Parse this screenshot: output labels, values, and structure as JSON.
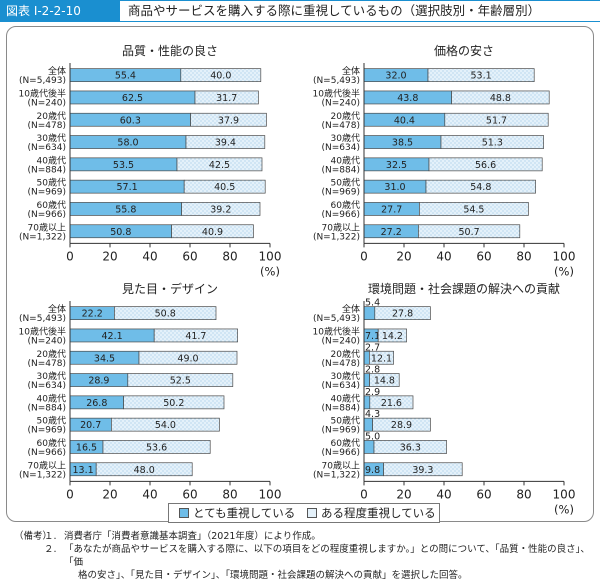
{
  "header": {
    "figure_label": "図表 I-2-2-10",
    "title": "商品やサービスを購入する際に重視しているもの（選択肢別・年齢層別）"
  },
  "colors": {
    "series1_fill": "#6fbde8",
    "series2_fill": "#e4f1fa",
    "border": "#1a8fd0"
  },
  "legend": {
    "items": [
      {
        "label": "とても重視している",
        "color": "#6fbde8"
      },
      {
        "label": "ある程度重視している",
        "color": "#e4f1fa"
      }
    ]
  },
  "chart_data": [
    {
      "type": "bar",
      "orientation": "horizontal",
      "stacked": true,
      "title": "品質・性能の良さ",
      "categories": [
        [
          "全体",
          "(N=5,493)"
        ],
        [
          "10歳代後半",
          "(N=240)"
        ],
        [
          "20歳代",
          "(N=478)"
        ],
        [
          "30歳代",
          "(N=634)"
        ],
        [
          "40歳代",
          "(N=884)"
        ],
        [
          "50歳代",
          "(N=969)"
        ],
        [
          "60歳代",
          "(N=966)"
        ],
        [
          "70歳以上",
          "(N=1,322)"
        ]
      ],
      "series": [
        {
          "name": "とても重視している",
          "values": [
            "55.4",
            "62.5",
            "60.3",
            "58.0",
            "53.5",
            "57.1",
            "55.8",
            "50.8"
          ]
        },
        {
          "name": "ある程度重視している",
          "values": [
            "40.0",
            "31.7",
            "37.9",
            "39.4",
            "42.5",
            "40.5",
            "39.2",
            "40.9"
          ]
        }
      ],
      "xlim": [
        0,
        100
      ],
      "xticks": [
        "0",
        "20",
        "40",
        "60",
        "80",
        "100"
      ],
      "xunit": "(%)"
    },
    {
      "type": "bar",
      "orientation": "horizontal",
      "stacked": true,
      "title": "価格の安さ",
      "categories": [
        [
          "全体",
          "(N=5,493)"
        ],
        [
          "10歳代後半",
          "(N=240)"
        ],
        [
          "20歳代",
          "(N=478)"
        ],
        [
          "30歳代",
          "(N=634)"
        ],
        [
          "40歳代",
          "(N=884)"
        ],
        [
          "50歳代",
          "(N=969)"
        ],
        [
          "60歳代",
          "(N=966)"
        ],
        [
          "70歳以上",
          "(N=1,322)"
        ]
      ],
      "series": [
        {
          "name": "とても重視している",
          "values": [
            "32.0",
            "43.8",
            "40.4",
            "38.5",
            "32.5",
            "31.0",
            "27.7",
            "27.2"
          ]
        },
        {
          "name": "ある程度重視している",
          "values": [
            "53.1",
            "48.8",
            "51.7",
            "51.3",
            "56.6",
            "54.8",
            "54.5",
            "50.7"
          ]
        }
      ],
      "xlim": [
        0,
        100
      ],
      "xticks": [
        "0",
        "20",
        "40",
        "60",
        "80",
        "100"
      ],
      "xunit": "(%)"
    },
    {
      "type": "bar",
      "orientation": "horizontal",
      "stacked": true,
      "title": "見た目・デザイン",
      "categories": [
        [
          "全体",
          "(N=5,493)"
        ],
        [
          "10歳代後半",
          "(N=240)"
        ],
        [
          "20歳代",
          "(N=478)"
        ],
        [
          "30歳代",
          "(N=634)"
        ],
        [
          "40歳代",
          "(N=884)"
        ],
        [
          "50歳代",
          "(N=969)"
        ],
        [
          "60歳代",
          "(N=966)"
        ],
        [
          "70歳以上",
          "(N=1,322)"
        ]
      ],
      "series": [
        {
          "name": "とても重視している",
          "values": [
            "22.2",
            "42.1",
            "34.5",
            "28.9",
            "26.8",
            "20.7",
            "16.5",
            "13.1"
          ]
        },
        {
          "name": "ある程度重視している",
          "values": [
            "50.8",
            "41.7",
            "49.0",
            "52.5",
            "50.2",
            "54.0",
            "53.6",
            "48.0"
          ]
        }
      ],
      "xlim": [
        0,
        100
      ],
      "xticks": [
        "0",
        "20",
        "40",
        "60",
        "80",
        "100"
      ],
      "xunit": "(%)"
    },
    {
      "type": "bar",
      "orientation": "horizontal",
      "stacked": true,
      "title": "環境問題・社会課題の解決への貢献",
      "categories": [
        [
          "全体",
          "(N=5,493)"
        ],
        [
          "10歳代後半",
          "(N=240)"
        ],
        [
          "20歳代",
          "(N=478)"
        ],
        [
          "30歳代",
          "(N=634)"
        ],
        [
          "40歳代",
          "(N=884)"
        ],
        [
          "50歳代",
          "(N=969)"
        ],
        [
          "60歳代",
          "(N=966)"
        ],
        [
          "70歳以上",
          "(N=1,322)"
        ]
      ],
      "series": [
        {
          "name": "とても重視している",
          "values": [
            "5.4",
            "7.1",
            "2.7",
            "2.8",
            "2.9",
            "4.3",
            "5.0",
            "9.8"
          ]
        },
        {
          "name": "ある程度重視している",
          "values": [
            "27.8",
            "14.2",
            "12.1",
            "14.8",
            "21.6",
            "28.9",
            "36.3",
            "39.3"
          ]
        }
      ],
      "xlim": [
        0,
        100
      ],
      "xticks": [
        "0",
        "20",
        "40",
        "60",
        "80",
        "100"
      ],
      "xunit": "(%)"
    }
  ],
  "notes": {
    "heading": "（備考）",
    "items": [
      {
        "num": "１.",
        "lines": [
          "消費者庁「消費者意識基本調査」（2021年度）により作成。"
        ]
      },
      {
        "num": "２.",
        "lines": [
          "「あなたが商品やサービスを購入する際に、以下の項目をどの程度重視しますか。」との問について、「品質・性能の良さ」、「価",
          "格の安さ」、「見た目・デザイン」、「環境問題・社会課題の解決への貢献」を選択した回答。"
        ]
      }
    ]
  }
}
